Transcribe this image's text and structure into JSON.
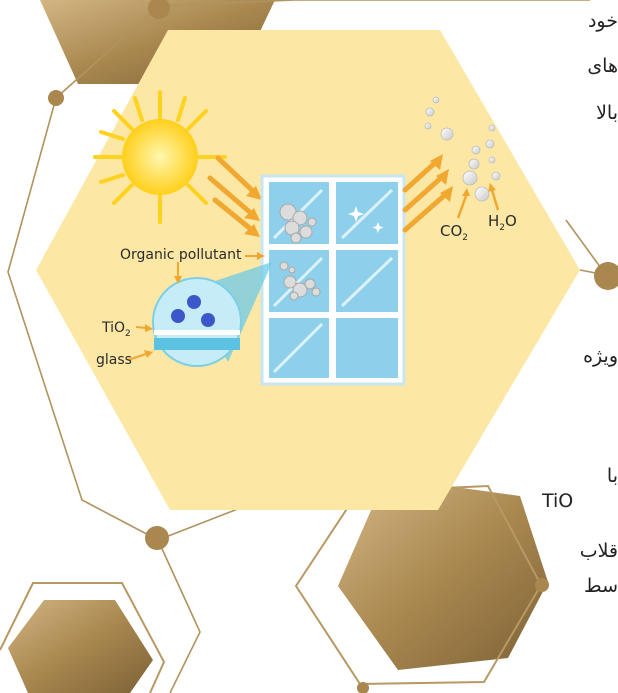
{
  "diagram": {
    "organic_pollutant_label": "Organic pollutant",
    "tio2_label": "TiO",
    "tio2_sub": "2",
    "glass_label": "glass",
    "co2_label": "CO",
    "co2_sub": "2",
    "h2o_label_left": "H",
    "h2o_sub": "2",
    "h2o_label_right": "O"
  },
  "side_text": {
    "line1": "خود",
    "line2": "های",
    "line3": "بالا",
    "line4": "ویژه",
    "line5": "با",
    "line6": "TiO",
    "line7": "قلاب",
    "line8": "سط"
  },
  "colors": {
    "gold_dark": "#9c7c44",
    "gold_light": "#c4a46d",
    "panel": "#fce7a5",
    "sky": "#9fd7ef",
    "arrow": "#f0a830",
    "sun": "#ffd21f"
  }
}
